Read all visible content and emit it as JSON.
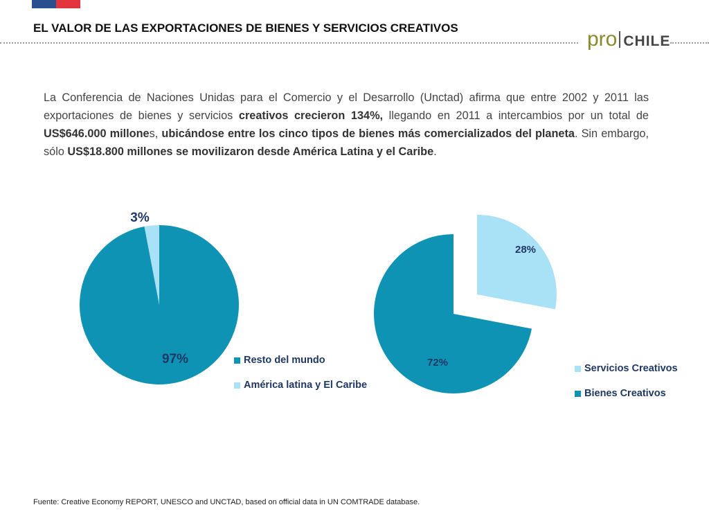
{
  "header": {
    "title": "EL VALOR DE LAS EXPORTACIONES DE BIENES Y SERVICIOS CREATIVOS",
    "logo_pro": "pro",
    "logo_chile": "CHILE"
  },
  "intro": {
    "segments": [
      {
        "text": "La Conferencia de Naciones Unidas para el Comercio y el Desarrollo (Unctad) afirma que entre 2002 y 2011 las exportaciones de bienes y servicios ",
        "bold": false
      },
      {
        "text": "creativos crecieron 134%,",
        "bold": true
      },
      {
        "text": " llegando en 2011 a intercambios por un total de ",
        "bold": false
      },
      {
        "text": "US$646.000 millone",
        "bold": true
      },
      {
        "text": "s, ",
        "bold": false
      },
      {
        "text": "ubicándose entre los cinco tipos de bienes más comercializados del planeta",
        "bold": true
      },
      {
        "text": ". Sin embargo, sólo ",
        "bold": false
      },
      {
        "text": "US$18.800 millones se movilizaron desde América Latina y el Caribe",
        "bold": true
      },
      {
        "text": ".",
        "bold": false
      }
    ]
  },
  "chart_data": [
    {
      "type": "pie",
      "title": "",
      "slices": [
        {
          "label": "Resto del mundo",
          "value": 97,
          "display": "97%",
          "color": "#0e93b4"
        },
        {
          "label": "América latina y El Caribe",
          "value": 3,
          "display": "3%",
          "color": "#a9e1f7"
        }
      ],
      "legend": "right"
    },
    {
      "type": "pie",
      "title": "",
      "slices": [
        {
          "label": "Servicios Creativos",
          "value": 28,
          "display": "28%",
          "color": "#a9e1f7",
          "exploded": true
        },
        {
          "label": "Bienes  Creativos",
          "value": 72,
          "display": "72%",
          "color": "#0e93b4"
        }
      ],
      "legend": "right"
    }
  ],
  "footer": {
    "source": "Fuente: Creative Economy REPORT, UNESCO and UNCTAD, based on official data in UN COMTRADE database."
  }
}
